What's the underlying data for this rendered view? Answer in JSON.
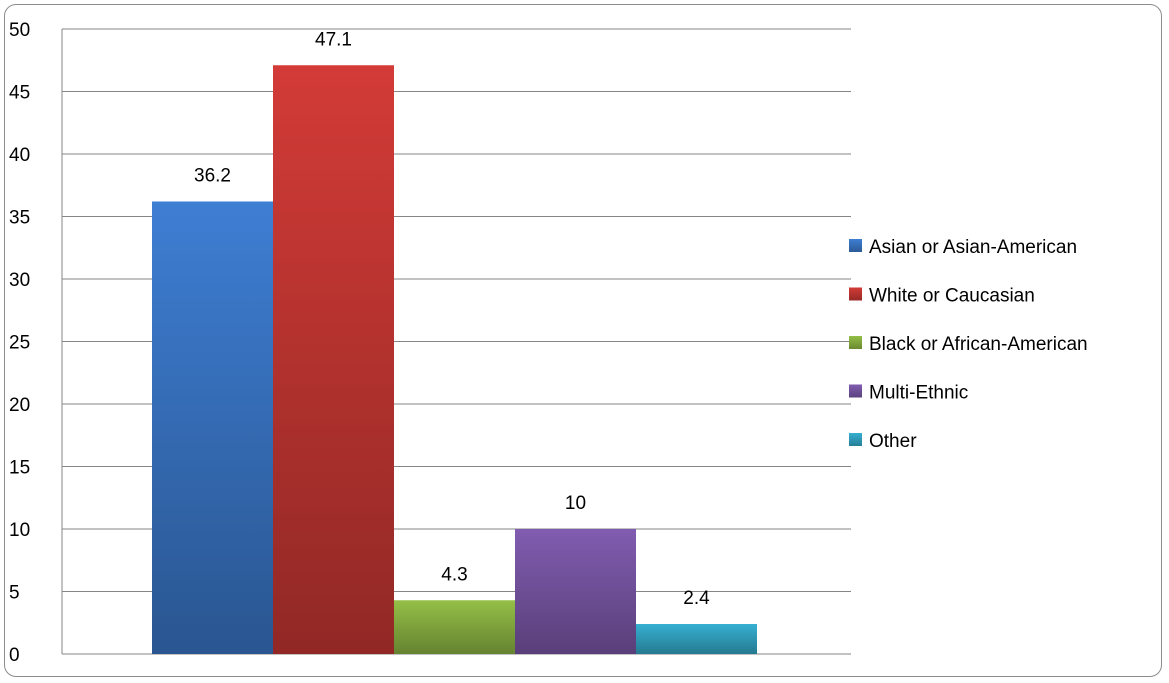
{
  "chart_data": {
    "type": "bar",
    "title": "",
    "xlabel": "",
    "ylabel": "",
    "ylim": [
      0,
      50
    ],
    "ytick_step": 5,
    "yticks": [
      "0",
      "5",
      "10",
      "15",
      "20",
      "25",
      "30",
      "35",
      "40",
      "45",
      "50"
    ],
    "grid": true,
    "legend_position": "right",
    "series": [
      {
        "name": "Asian or Asian-American",
        "value": 36.2,
        "label": "36.2",
        "color": "#3b78c9"
      },
      {
        "name": "White or Caucasian",
        "value": 47.1,
        "label": "47.1",
        "color": "#c93834"
      },
      {
        "name": "Black or African-American",
        "value": 4.3,
        "label": "4.3",
        "color": "#8db644"
      },
      {
        "name": "Multi-Ethnic",
        "value": 10,
        "label": "10",
        "color": "#7b58a8"
      },
      {
        "name": "Other",
        "value": 2.4,
        "label": "2.4",
        "color": "#33a8c8"
      }
    ]
  }
}
